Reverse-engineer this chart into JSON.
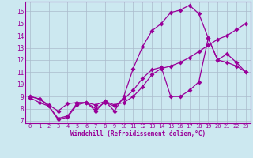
{
  "xlabel": "Windchill (Refroidissement éolien,°C)",
  "bg_color": "#cce8f0",
  "line_color": "#990099",
  "grid_color": "#aabbcc",
  "xlim": [
    -0.5,
    23.5
  ],
  "ylim": [
    6.8,
    16.8
  ],
  "yticks": [
    7,
    8,
    9,
    10,
    11,
    12,
    13,
    14,
    15,
    16
  ],
  "xticks": [
    0,
    1,
    2,
    3,
    4,
    5,
    6,
    7,
    8,
    9,
    10,
    11,
    12,
    13,
    14,
    15,
    16,
    17,
    18,
    19,
    20,
    21,
    22,
    23
  ],
  "line1_x": [
    0,
    1,
    2,
    3,
    4,
    5,
    6,
    7,
    8,
    9,
    10,
    11,
    12,
    13,
    14,
    15,
    16,
    17,
    18,
    19,
    20,
    21,
    22,
    23
  ],
  "line1_y": [
    9.0,
    8.8,
    8.3,
    7.8,
    8.4,
    8.5,
    8.5,
    8.3,
    8.6,
    8.3,
    8.5,
    9.0,
    9.8,
    10.8,
    11.3,
    11.5,
    11.8,
    12.2,
    12.7,
    13.2,
    13.7,
    14.0,
    14.5,
    15.0
  ],
  "line2_x": [
    0,
    1,
    2,
    3,
    4,
    5,
    6,
    7,
    8,
    9,
    10,
    11,
    12,
    13,
    14,
    15,
    16,
    17,
    18,
    19,
    20,
    21,
    22,
    23
  ],
  "line2_y": [
    9.0,
    8.8,
    8.2,
    7.1,
    7.3,
    8.3,
    8.5,
    7.8,
    8.6,
    7.8,
    9.0,
    11.3,
    13.1,
    14.4,
    15.0,
    15.9,
    16.1,
    16.5,
    15.8,
    13.8,
    12.0,
    11.8,
    11.5,
    11.0
  ],
  "line3_x": [
    0,
    1,
    2,
    3,
    4,
    5,
    6,
    7,
    8,
    9,
    10,
    11,
    12,
    13,
    14,
    15,
    16,
    17,
    18,
    19,
    20,
    21,
    22,
    23
  ],
  "line3_y": [
    8.9,
    8.5,
    8.2,
    7.2,
    7.4,
    8.4,
    8.5,
    8.0,
    8.5,
    8.2,
    8.8,
    9.5,
    10.5,
    11.2,
    11.4,
    9.0,
    9.0,
    9.5,
    10.2,
    13.8,
    12.0,
    12.5,
    11.8,
    11.0
  ]
}
